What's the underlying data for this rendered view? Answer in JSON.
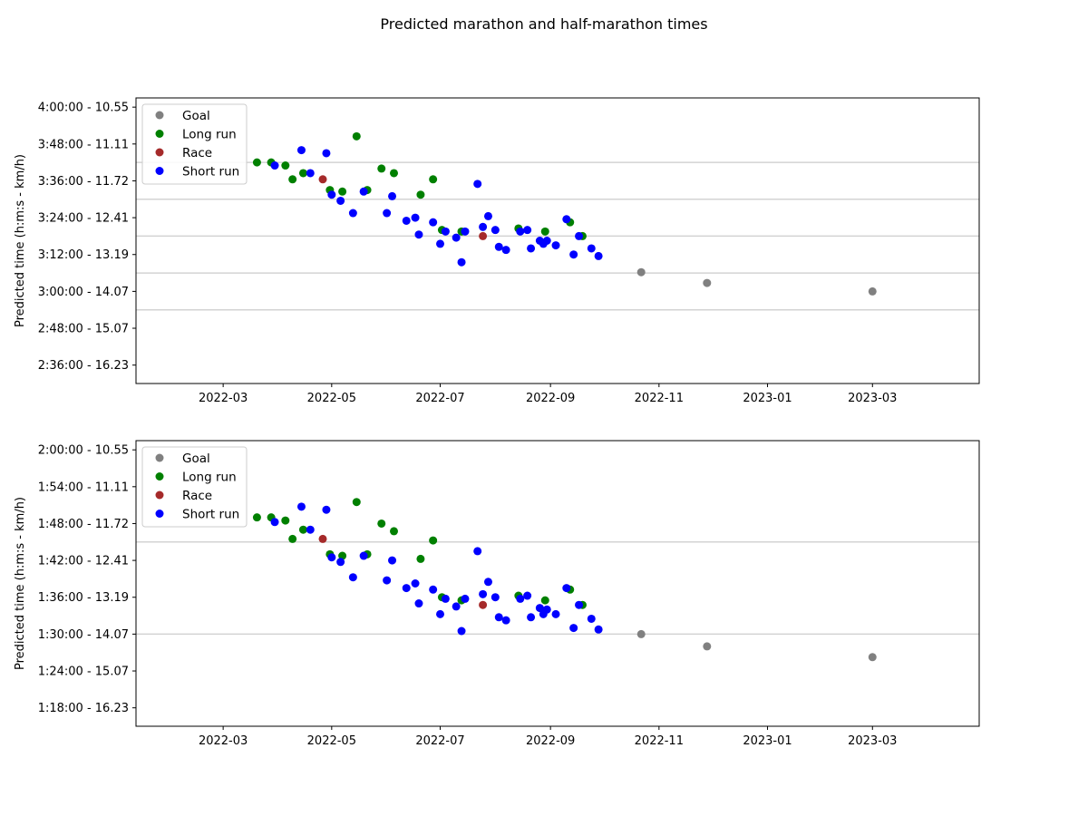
{
  "figure": {
    "title": "Predicted marathon and half-marathon times"
  },
  "colors": {
    "Goal": "#808080",
    "Long run": "#008000",
    "Race": "#a52a2a",
    "Short run": "#0000ff",
    "hline": "#d3d3d3"
  },
  "chart_data": [
    {
      "type": "scatter",
      "ylabel": "Predicted time (h:m:s - km/h)",
      "xlabel": "",
      "x_axis": "date",
      "xlim": [
        "2022-01-11",
        "2023-04-30"
      ],
      "x_ticks": [
        "2022-03-01",
        "2022-05-01",
        "2022-07-01",
        "2022-09-01",
        "2022-11-01",
        "2023-01-01",
        "2023-03-01"
      ],
      "x_tick_labels": [
        "2022-03",
        "2022-05",
        "2022-07",
        "2022-09",
        "2022-11",
        "2023-01",
        "2023-03"
      ],
      "y_unit": "h:m:s",
      "ylim": [
        "4:03:00",
        "2:30:00"
      ],
      "y_inverted": true,
      "y_ticks": [
        "4:00:00",
        "3:48:00",
        "3:36:00",
        "3:24:00",
        "3:12:00",
        "3:00:00",
        "2:48:00",
        "2:36:00"
      ],
      "y_tick_labels": [
        "4:00:00 - 10.55",
        "3:48:00 - 11.11",
        "3:36:00 - 11.72",
        "3:24:00 - 12.41",
        "3:12:00 - 13.19",
        "3:00:00 - 14.07",
        "2:48:00 - 15.07",
        "2:36:00 - 16.23"
      ],
      "hlines": [
        "3:42:00",
        "3:30:00",
        "3:18:00",
        "3:06:00",
        "2:54:00"
      ],
      "legend": {
        "position": "upper left",
        "entries": [
          "Goal",
          "Long run",
          "Race",
          "Short run"
        ]
      },
      "series": [
        {
          "name": "Goal",
          "points": [
            [
              "2022-10-22",
              "3:06:15"
            ],
            [
              "2022-11-28",
              "3:02:45"
            ],
            [
              "2023-03-01",
              "3:00:00"
            ]
          ]
        },
        {
          "name": "Long run",
          "points": [
            [
              "2022-03-20",
              "3:42:00"
            ],
            [
              "2022-03-28",
              "3:42:00"
            ],
            [
              "2022-04-05",
              "3:41:00"
            ],
            [
              "2022-04-09",
              "3:36:30"
            ],
            [
              "2022-04-15",
              "3:38:30"
            ],
            [
              "2022-04-30",
              "3:33:00"
            ],
            [
              "2022-05-07",
              "3:32:30"
            ],
            [
              "2022-05-15",
              "3:50:30"
            ],
            [
              "2022-05-21",
              "3:33:00"
            ],
            [
              "2022-05-29",
              "3:40:00"
            ],
            [
              "2022-06-05",
              "3:38:30"
            ],
            [
              "2022-06-20",
              "3:31:30"
            ],
            [
              "2022-06-27",
              "3:36:30"
            ],
            [
              "2022-07-02",
              "3:20:00"
            ],
            [
              "2022-07-13",
              "3:19:30"
            ],
            [
              "2022-08-14",
              "3:20:30"
            ],
            [
              "2022-08-29",
              "3:19:30"
            ],
            [
              "2022-09-12",
              "3:22:30"
            ],
            [
              "2022-09-19",
              "3:18:00"
            ]
          ]
        },
        {
          "name": "Race",
          "points": [
            [
              "2022-04-26",
              "3:36:30"
            ],
            [
              "2022-07-25",
              "3:18:00"
            ]
          ]
        },
        {
          "name": "Short run",
          "points": [
            [
              "2022-03-30",
              "3:41:00"
            ],
            [
              "2022-04-14",
              "3:46:00"
            ],
            [
              "2022-04-19",
              "3:38:30"
            ],
            [
              "2022-04-28",
              "3:45:00"
            ],
            [
              "2022-05-01",
              "3:31:30"
            ],
            [
              "2022-05-06",
              "3:29:30"
            ],
            [
              "2022-05-13",
              "3:25:30"
            ],
            [
              "2022-05-19",
              "3:32:30"
            ],
            [
              "2022-06-01",
              "3:25:30"
            ],
            [
              "2022-06-04",
              "3:31:00"
            ],
            [
              "2022-06-12",
              "3:23:00"
            ],
            [
              "2022-06-17",
              "3:24:00"
            ],
            [
              "2022-06-19",
              "3:18:30"
            ],
            [
              "2022-06-27",
              "3:22:30"
            ],
            [
              "2022-07-01",
              "3:15:30"
            ],
            [
              "2022-07-04",
              "3:19:30"
            ],
            [
              "2022-07-10",
              "3:17:30"
            ],
            [
              "2022-07-13",
              "3:09:30"
            ],
            [
              "2022-07-15",
              "3:19:30"
            ],
            [
              "2022-07-22",
              "3:35:00"
            ],
            [
              "2022-07-25",
              "3:21:00"
            ],
            [
              "2022-07-28",
              "3:24:30"
            ],
            [
              "2022-08-01",
              "3:20:00"
            ],
            [
              "2022-08-03",
              "3:14:30"
            ],
            [
              "2022-08-07",
              "3:13:30"
            ],
            [
              "2022-08-15",
              "3:19:30"
            ],
            [
              "2022-08-19",
              "3:20:00"
            ],
            [
              "2022-08-21",
              "3:14:00"
            ],
            [
              "2022-08-26",
              "3:16:30"
            ],
            [
              "2022-08-28",
              "3:15:30"
            ],
            [
              "2022-08-30",
              "3:16:30"
            ],
            [
              "2022-09-04",
              "3:15:00"
            ],
            [
              "2022-09-10",
              "3:23:30"
            ],
            [
              "2022-09-14",
              "3:12:00"
            ],
            [
              "2022-09-17",
              "3:18:00"
            ],
            [
              "2022-09-24",
              "3:14:00"
            ],
            [
              "2022-09-28",
              "3:11:30"
            ]
          ]
        }
      ]
    },
    {
      "type": "scatter",
      "ylabel": "Predicted time (h:m:s - km/h)",
      "xlabel": "",
      "x_axis": "date",
      "xlim": [
        "2022-01-11",
        "2023-04-30"
      ],
      "x_ticks": [
        "2022-03-01",
        "2022-05-01",
        "2022-07-01",
        "2022-09-01",
        "2022-11-01",
        "2023-01-01",
        "2023-03-01"
      ],
      "x_tick_labels": [
        "2022-03",
        "2022-05",
        "2022-07",
        "2022-09",
        "2022-11",
        "2023-01",
        "2023-03"
      ],
      "y_unit": "h:m:s",
      "ylim": [
        "2:01:30",
        "1:15:00"
      ],
      "y_inverted": true,
      "y_ticks": [
        "2:00:00",
        "1:54:00",
        "1:48:00",
        "1:42:00",
        "1:36:00",
        "1:30:00",
        "1:24:00",
        "1:18:00"
      ],
      "y_tick_labels": [
        "2:00:00 - 10.55",
        "1:54:00 - 11.11",
        "1:48:00 - 11.72",
        "1:42:00 - 12.41",
        "1:36:00 - 13.19",
        "1:30:00 - 14.07",
        "1:24:00 - 15.07",
        "1:18:00 - 16.23"
      ],
      "hlines": [
        "1:45:00",
        "1:30:00"
      ],
      "legend": {
        "position": "upper left",
        "entries": [
          "Goal",
          "Long run",
          "Race",
          "Short run"
        ]
      },
      "series": [
        {
          "name": "Goal",
          "points": [
            [
              "2022-10-22",
              "1:30:00"
            ],
            [
              "2022-11-28",
              "1:28:00"
            ],
            [
              "2023-03-01",
              "1:26:15"
            ]
          ]
        },
        {
          "name": "Long run",
          "points": [
            [
              "2022-03-20",
              "1:49:00"
            ],
            [
              "2022-03-28",
              "1:49:00"
            ],
            [
              "2022-04-05",
              "1:48:30"
            ],
            [
              "2022-04-09",
              "1:45:30"
            ],
            [
              "2022-04-15",
              "1:47:00"
            ],
            [
              "2022-04-30",
              "1:43:00"
            ],
            [
              "2022-05-07",
              "1:42:45"
            ],
            [
              "2022-05-15",
              "1:51:30"
            ],
            [
              "2022-05-21",
              "1:43:00"
            ],
            [
              "2022-05-29",
              "1:48:00"
            ],
            [
              "2022-06-05",
              "1:46:45"
            ],
            [
              "2022-06-20",
              "1:42:15"
            ],
            [
              "2022-06-27",
              "1:45:15"
            ],
            [
              "2022-07-02",
              "1:36:00"
            ],
            [
              "2022-07-13",
              "1:35:30"
            ],
            [
              "2022-08-14",
              "1:36:15"
            ],
            [
              "2022-08-29",
              "1:35:30"
            ],
            [
              "2022-09-12",
              "1:37:15"
            ],
            [
              "2022-09-19",
              "1:34:45"
            ]
          ]
        },
        {
          "name": "Race",
          "points": [
            [
              "2022-04-26",
              "1:45:30"
            ],
            [
              "2022-07-25",
              "1:34:45"
            ]
          ]
        },
        {
          "name": "Short run",
          "points": [
            [
              "2022-03-30",
              "1:48:15"
            ],
            [
              "2022-04-14",
              "1:50:45"
            ],
            [
              "2022-04-19",
              "1:47:00"
            ],
            [
              "2022-04-28",
              "1:50:15"
            ],
            [
              "2022-05-01",
              "1:42:30"
            ],
            [
              "2022-05-06",
              "1:41:45"
            ],
            [
              "2022-05-13",
              "1:39:15"
            ],
            [
              "2022-05-19",
              "1:42:45"
            ],
            [
              "2022-06-01",
              "1:38:45"
            ],
            [
              "2022-06-04",
              "1:42:00"
            ],
            [
              "2022-06-12",
              "1:37:30"
            ],
            [
              "2022-06-17",
              "1:38:15"
            ],
            [
              "2022-06-19",
              "1:35:00"
            ],
            [
              "2022-06-27",
              "1:37:15"
            ],
            [
              "2022-07-01",
              "1:33:15"
            ],
            [
              "2022-07-04",
              "1:35:45"
            ],
            [
              "2022-07-10",
              "1:34:30"
            ],
            [
              "2022-07-13",
              "1:30:30"
            ],
            [
              "2022-07-15",
              "1:35:45"
            ],
            [
              "2022-07-22",
              "1:43:30"
            ],
            [
              "2022-07-25",
              "1:36:30"
            ],
            [
              "2022-07-28",
              "1:38:30"
            ],
            [
              "2022-08-01",
              "1:36:00"
            ],
            [
              "2022-08-03",
              "1:32:45"
            ],
            [
              "2022-08-07",
              "1:32:15"
            ],
            [
              "2022-08-15",
              "1:35:45"
            ],
            [
              "2022-08-19",
              "1:36:15"
            ],
            [
              "2022-08-21",
              "1:32:45"
            ],
            [
              "2022-08-26",
              "1:34:15"
            ],
            [
              "2022-08-28",
              "1:33:15"
            ],
            [
              "2022-08-30",
              "1:34:00"
            ],
            [
              "2022-09-04",
              "1:33:15"
            ],
            [
              "2022-09-10",
              "1:37:30"
            ],
            [
              "2022-09-14",
              "1:31:00"
            ],
            [
              "2022-09-17",
              "1:34:45"
            ],
            [
              "2022-09-24",
              "1:32:30"
            ],
            [
              "2022-09-28",
              "1:30:45"
            ]
          ]
        }
      ]
    }
  ]
}
